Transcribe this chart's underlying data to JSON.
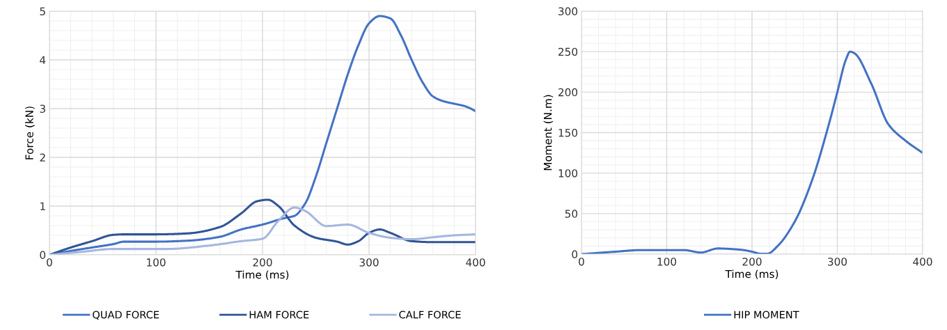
{
  "chart_data": [
    {
      "type": "line",
      "xlabel": "Time (ms)",
      "ylabel": "Force (kN)",
      "xlim": [
        0,
        400
      ],
      "ylim": [
        0,
        5
      ],
      "xticks": [
        0,
        100,
        200,
        300,
        400
      ],
      "yticks": [
        0,
        1,
        2,
        3,
        4,
        5
      ],
      "grid": true,
      "legend": "bottom",
      "marker": "none",
      "line_style": "solid",
      "series": [
        {
          "name": "QUAD FORCE",
          "color": "#4472c4",
          "x": [
            0,
            20,
            40,
            60,
            70,
            100,
            130,
            160,
            180,
            200,
            220,
            230,
            240,
            250,
            260,
            270,
            280,
            290,
            300,
            310,
            320,
            330,
            340,
            350,
            360,
            370,
            380,
            390,
            400
          ],
          "values": [
            0,
            0.08,
            0.15,
            0.22,
            0.27,
            0.27,
            0.29,
            0.37,
            0.52,
            0.62,
            0.75,
            0.8,
            1.05,
            1.6,
            2.3,
            3.0,
            3.7,
            4.3,
            4.75,
            4.9,
            4.85,
            4.5,
            4.0,
            3.55,
            3.25,
            3.15,
            3.1,
            3.05,
            2.95
          ]
        },
        {
          "name": "HAM FORCE",
          "color": "#2f5597",
          "x": [
            0,
            20,
            40,
            60,
            70,
            100,
            130,
            160,
            180,
            195,
            205,
            215,
            230,
            250,
            270,
            280,
            290,
            300,
            310,
            320,
            340,
            360,
            400
          ],
          "values": [
            0,
            0.15,
            0.28,
            0.41,
            0.42,
            0.42,
            0.44,
            0.57,
            0.85,
            1.1,
            1.13,
            1.0,
            0.6,
            0.35,
            0.27,
            0.21,
            0.28,
            0.45,
            0.52,
            0.45,
            0.28,
            0.26,
            0.26
          ]
        },
        {
          "name": "CALF FORCE",
          "color": "#a5b6e0",
          "x": [
            0,
            30,
            60,
            110,
            150,
            180,
            200,
            215,
            230,
            240,
            260,
            280,
            300,
            320,
            340,
            360,
            380,
            400
          ],
          "values": [
            0,
            0.06,
            0.12,
            0.12,
            0.19,
            0.28,
            0.33,
            0.7,
            0.97,
            0.9,
            0.59,
            0.62,
            0.45,
            0.35,
            0.32,
            0.36,
            0.4,
            0.42
          ]
        }
      ]
    },
    {
      "type": "line",
      "xlabel": "Time (ms)",
      "ylabel": "Moment (N.m)",
      "xlim": [
        0,
        400
      ],
      "ylim": [
        0,
        300
      ],
      "xticks": [
        0,
        100,
        200,
        300,
        400
      ],
      "yticks": [
        0,
        50,
        100,
        150,
        200,
        250,
        300
      ],
      "grid": true,
      "legend": "bottom",
      "marker": "none",
      "line_style": "solid",
      "series": [
        {
          "name": "HIP MOMENT",
          "color": "#4472c4",
          "x": [
            0,
            40,
            70,
            100,
            120,
            140,
            160,
            180,
            190,
            200,
            210,
            218,
            230,
            250,
            270,
            290,
            300,
            310,
            315,
            320,
            340,
            360,
            380,
            400
          ],
          "values": [
            0,
            3,
            5,
            5,
            5,
            2,
            7,
            6,
            5,
            3,
            0.5,
            0.5,
            10,
            40,
            90,
            160,
            200,
            240,
            250,
            248,
            210,
            160,
            140,
            125
          ]
        }
      ]
    }
  ]
}
